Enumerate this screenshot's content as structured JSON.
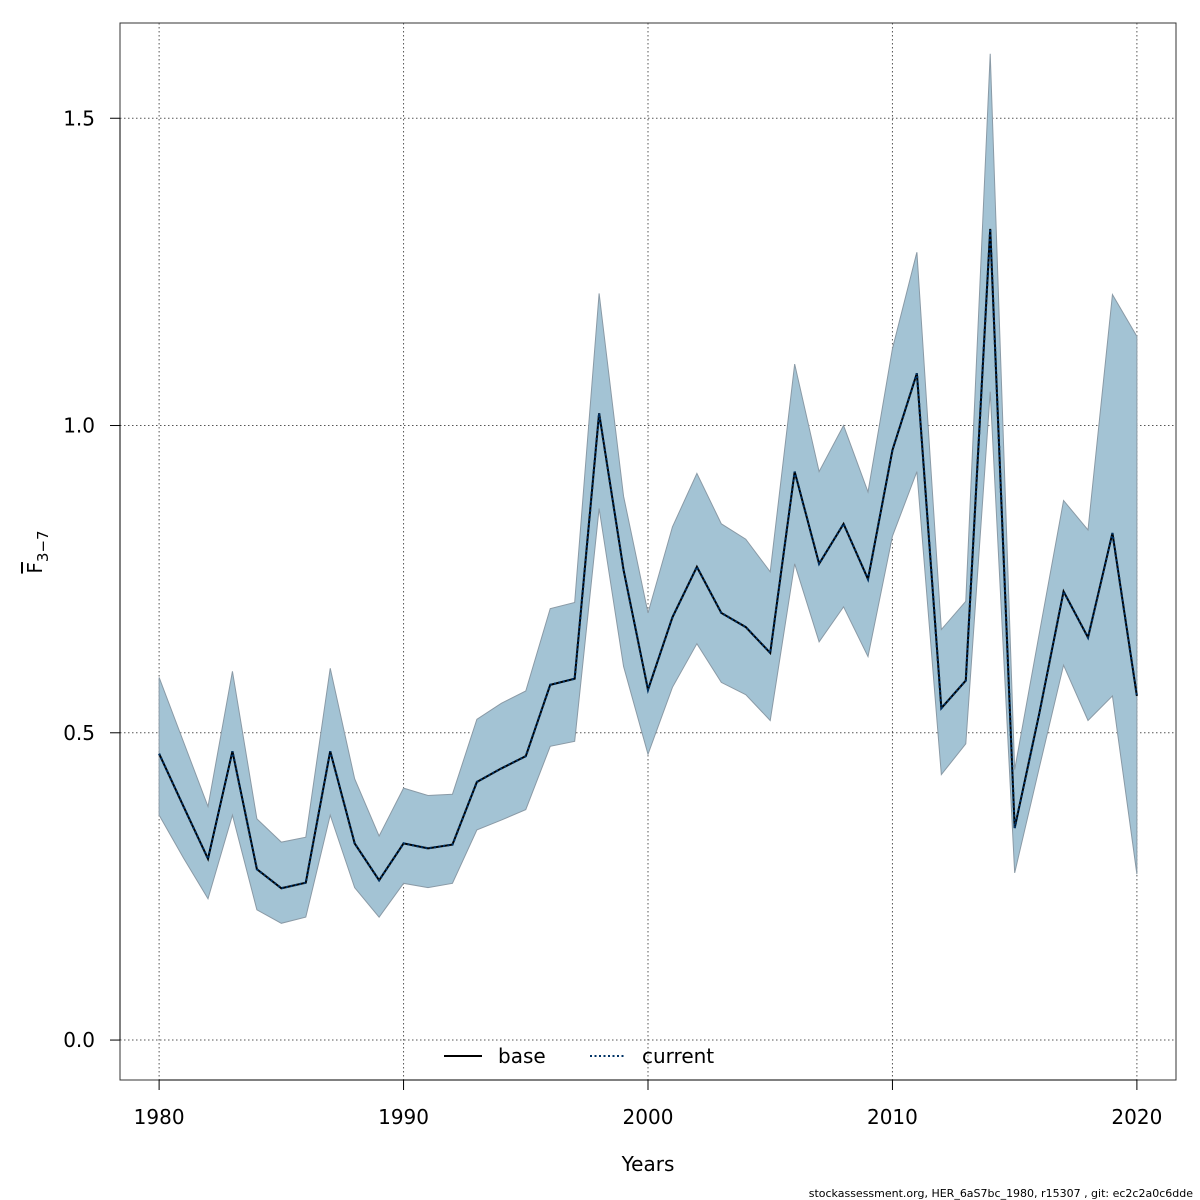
{
  "chart_data": {
    "type": "area",
    "xlabel": "Years",
    "ylabel_main": "F",
    "ylabel_sub": "3−7",
    "xlim": [
      1978.4,
      2021.6
    ],
    "ylim": [
      -0.065,
      1.655
    ],
    "x_ticks": [
      1980,
      1990,
      2000,
      2010,
      2020
    ],
    "y_ticks": [
      0.0,
      0.5,
      1.0,
      1.5
    ],
    "x_tick_labels": [
      "1980",
      "1990",
      "2000",
      "2010",
      "2020"
    ],
    "y_tick_labels": [
      "0.0",
      "0.5",
      "1.0",
      "1.5"
    ],
    "grid": true,
    "band_color": "#a3c3d4",
    "band_edge_color": "#8a9aa6",
    "current_line_color": "#003366",
    "base_line_color": "#000000",
    "legend": {
      "placement": "bottom-center",
      "entries": [
        {
          "label": "base",
          "style": "solid"
        },
        {
          "label": "current",
          "style": "dotted"
        }
      ]
    },
    "x": [
      1980,
      1981,
      1982,
      1983,
      1984,
      1985,
      1986,
      1987,
      1988,
      1989,
      1990,
      1991,
      1992,
      1993,
      1994,
      1995,
      1996,
      1997,
      1998,
      1999,
      2000,
      2001,
      2002,
      2003,
      2004,
      2005,
      2006,
      2007,
      2008,
      2009,
      2010,
      2011,
      2012,
      2013,
      2014,
      2015,
      2016,
      2017,
      2018,
      2019,
      2020
    ],
    "series": [
      {
        "name": "base",
        "values": [
          0.466,
          0.38,
          0.295,
          0.47,
          0.278,
          0.247,
          0.256,
          0.47,
          0.32,
          0.26,
          0.32,
          0.312,
          0.318,
          0.42,
          0.442,
          0.462,
          0.578,
          0.588,
          1.02,
          0.765,
          0.57,
          0.688,
          0.77,
          0.695,
          0.672,
          0.63,
          0.925,
          0.775,
          0.84,
          0.75,
          0.96,
          1.085,
          0.54,
          0.585,
          1.32,
          0.345,
          0.53,
          0.73,
          0.655,
          0.825,
          0.56
        ]
      },
      {
        "name": "current",
        "values": [
          0.466,
          0.38,
          0.295,
          0.47,
          0.278,
          0.247,
          0.256,
          0.47,
          0.32,
          0.26,
          0.32,
          0.312,
          0.318,
          0.42,
          0.442,
          0.462,
          0.578,
          0.588,
          1.02,
          0.765,
          0.57,
          0.688,
          0.77,
          0.695,
          0.672,
          0.63,
          0.925,
          0.775,
          0.84,
          0.75,
          0.96,
          1.085,
          0.54,
          0.585,
          1.32,
          0.345,
          0.53,
          0.73,
          0.655,
          0.825,
          0.56
        ]
      }
    ],
    "band_upper": [
      0.59,
      0.485,
      0.38,
      0.6,
      0.36,
      0.322,
      0.33,
      0.605,
      0.425,
      0.332,
      0.41,
      0.398,
      0.4,
      0.522,
      0.548,
      0.568,
      0.702,
      0.712,
      1.215,
      0.885,
      0.695,
      0.835,
      0.922,
      0.84,
      0.815,
      0.762,
      1.1,
      0.925,
      1.0,
      0.892,
      1.125,
      1.282,
      0.668,
      0.714,
      1.605,
      0.44,
      0.66,
      0.878,
      0.83,
      1.213,
      1.145
    ],
    "band_lower": [
      0.366,
      0.296,
      0.23,
      0.366,
      0.212,
      0.19,
      0.2,
      0.366,
      0.248,
      0.2,
      0.255,
      0.248,
      0.255,
      0.342,
      0.358,
      0.375,
      0.478,
      0.486,
      0.865,
      0.608,
      0.465,
      0.574,
      0.645,
      0.582,
      0.562,
      0.52,
      0.775,
      0.648,
      0.705,
      0.624,
      0.82,
      0.925,
      0.432,
      0.482,
      1.055,
      0.272,
      0.442,
      0.61,
      0.52,
      0.56,
      0.27
    ]
  },
  "footer": "stockassessment.org, HER_6aS7bc_1980, r15307 , git: ec2c2a0c6dde"
}
